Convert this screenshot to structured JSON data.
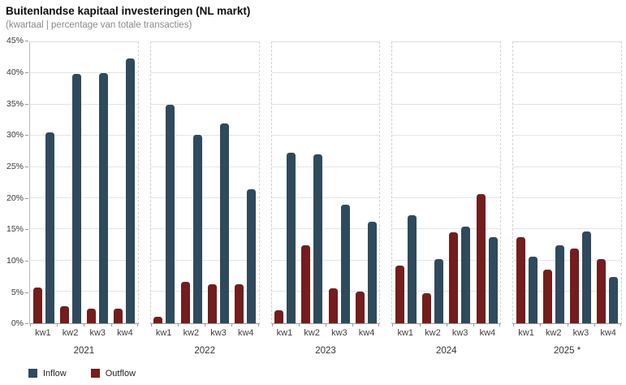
{
  "header": {
    "title": "Buitenlandse kapitaal investeringen (NL markt)",
    "subtitle": "(kwartaal | percentage van totale transacties)"
  },
  "chart_data": {
    "type": "bar",
    "title": "Buitenlandse kapitaal investeringen (NL markt)",
    "subtitle": "(kwartaal | percentage van totale transacties)",
    "grid": true,
    "legend_position": "bottom-left",
    "y_axis": {
      "min": 0,
      "max": 45,
      "step": 5,
      "unit": "%",
      "tick_labels": [
        "0%",
        "5%",
        "10%",
        "15%",
        "20%",
        "25%",
        "30%",
        "35%",
        "40%",
        "45%"
      ]
    },
    "x_axis": {
      "quarter_labels": [
        "kw1",
        "kw2",
        "kw3",
        "kw4"
      ]
    },
    "series": [
      {
        "name": "Inflow",
        "color": "#2f4a5c"
      },
      {
        "name": "Outflow",
        "color": "#731d1d"
      }
    ],
    "bar_order": [
      "Outflow",
      "Inflow"
    ],
    "panels": [
      {
        "year": "2021",
        "outflow": [
          5.7,
          2.7,
          2.3,
          2.3
        ],
        "inflow": [
          30.6,
          39.9,
          40.1,
          42.4
        ]
      },
      {
        "year": "2022",
        "outflow": [
          1.0,
          6.6,
          6.2,
          6.2
        ],
        "inflow": [
          35.0,
          30.2,
          32.0,
          21.5
        ]
      },
      {
        "year": "2023",
        "outflow": [
          2.1,
          12.5,
          5.6,
          5.0
        ],
        "inflow": [
          27.3,
          27.0,
          19.0,
          16.2
        ]
      },
      {
        "year": "2024",
        "outflow": [
          9.2,
          4.8,
          14.6,
          20.6
        ],
        "inflow": [
          17.3,
          10.2,
          15.5,
          13.8
        ]
      },
      {
        "year": "2025 *",
        "outflow": [
          13.8,
          8.5,
          12.0,
          10.3
        ],
        "inflow": [
          10.6,
          12.4,
          14.7,
          7.4
        ]
      }
    ],
    "legend": [
      {
        "label": "Inflow",
        "color": "#2f4a5c"
      },
      {
        "label": "Outflow",
        "color": "#731d1d"
      }
    ]
  }
}
